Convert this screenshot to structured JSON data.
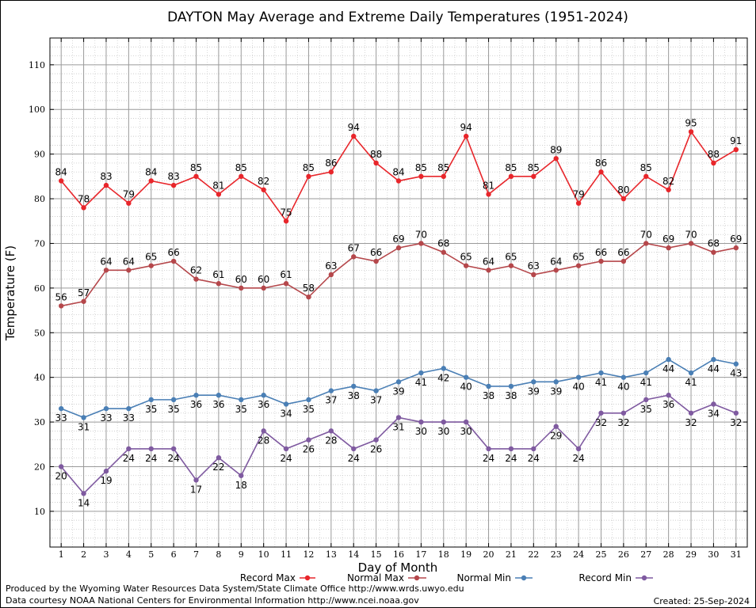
{
  "chart_data": {
    "type": "line",
    "title": "DAYTON May Average and Extreme Daily Temperatures (1951-2024)",
    "xlabel": "Day of Month",
    "ylabel": "Temperature (F)",
    "x": [
      1,
      2,
      3,
      4,
      5,
      6,
      7,
      8,
      9,
      10,
      11,
      12,
      13,
      14,
      15,
      16,
      17,
      18,
      19,
      20,
      21,
      22,
      23,
      24,
      25,
      26,
      27,
      28,
      29,
      30,
      31
    ],
    "ylim": [
      2,
      116
    ],
    "yticks": [
      10,
      20,
      30,
      40,
      50,
      60,
      70,
      80,
      90,
      100,
      110
    ],
    "grid": true,
    "legend": "bottom",
    "series": [
      {
        "name": "Record Max",
        "color": "#e8262b",
        "values": [
          84,
          78,
          83,
          79,
          84,
          83,
          85,
          81,
          85,
          82,
          75,
          85,
          86,
          94,
          88,
          84,
          85,
          85,
          94,
          81,
          85,
          85,
          89,
          79,
          86,
          80,
          85,
          82,
          95,
          88,
          91
        ]
      },
      {
        "name": "Normal Max",
        "color": "#b5474b",
        "values": [
          56,
          57,
          64,
          64,
          65,
          66,
          62,
          61,
          60,
          60,
          61,
          58,
          63,
          67,
          66,
          69,
          70,
          68,
          65,
          64,
          65,
          63,
          64,
          65,
          66,
          66,
          70,
          69,
          70,
          68,
          69
        ]
      },
      {
        "name": "Normal Min",
        "color": "#4a7fb5",
        "values": [
          33,
          31,
          33,
          33,
          35,
          35,
          36,
          36,
          35,
          36,
          34,
          35,
          37,
          38,
          37,
          39,
          41,
          42,
          40,
          38,
          38,
          39,
          39,
          40,
          41,
          40,
          41,
          44,
          41,
          44,
          43
        ]
      },
      {
        "name": "Record Min",
        "color": "#7f5aa0",
        "values": [
          20,
          14,
          19,
          24,
          24,
          24,
          17,
          22,
          18,
          28,
          24,
          26,
          28,
          24,
          26,
          31,
          30,
          30,
          30,
          24,
          24,
          24,
          29,
          24,
          32,
          32,
          35,
          36,
          32,
          34,
          32
        ]
      }
    ]
  },
  "footer": {
    "produced_by": "Produced by the Wyoming Water Resources Data System/State Climate Office http://www.wrds.uwyo.edu",
    "courtesy": "Data courtesy NOAA National Centers for Environmental Information http://www.ncei.noaa.gov",
    "created": "Created:  25-Sep-2024"
  }
}
